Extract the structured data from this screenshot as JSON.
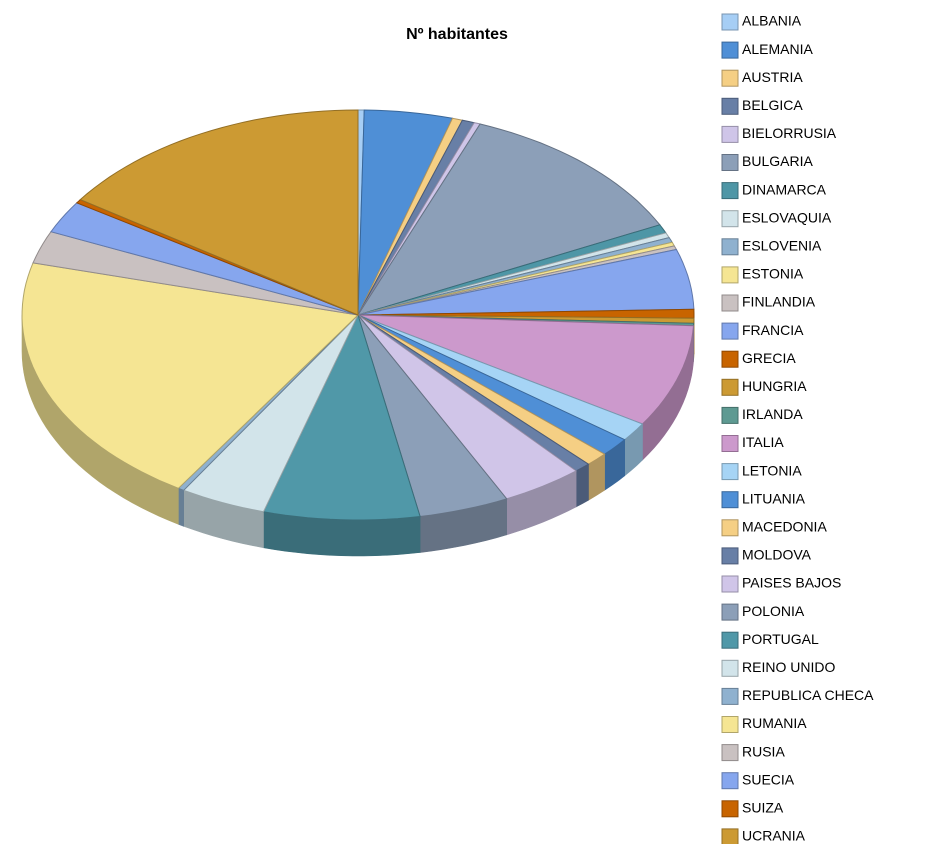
{
  "chart_data": {
    "type": "pie3d",
    "title": "Nº habitantes",
    "categories": [
      "ALBANIA",
      "ALEMANIA",
      "AUSTRIA",
      "BELGICA",
      "BIELORRUSIA",
      "BULGARIA",
      "DINAMARCA",
      "ESLOVAQUIA",
      "ESLOVENIA",
      "ESTONIA",
      "FINLANDIA",
      "FRANCIA",
      "GRECIA",
      "HUNGRIA",
      "IRLANDA",
      "ITALIA",
      "LETONIA",
      "LITUANIA",
      "MACEDONIA",
      "MOLDOVA",
      "PAISES BAJOS",
      "POLONIA",
      "PORTUGAL",
      "REINO UNIDO",
      "REPUBLICA CHECA",
      "RUMANIA",
      "RUSIA",
      "SUECIA",
      "SUIZA",
      "UCRANIA"
    ],
    "values": [
      0.3,
      4.3,
      0.5,
      0.6,
      0.3,
      12.0,
      0.7,
      0.4,
      0.4,
      0.3,
      0.3,
      4.8,
      0.7,
      0.4,
      0.2,
      8.2,
      1.5,
      1.5,
      1.1,
      0.8,
      4.0,
      4.4,
      7.6,
      4.2,
      0.3,
      20.4,
      2.6,
      2.6,
      0.3,
      15.7
    ],
    "colors": [
      "#a6cef5",
      "#4f8fd6",
      "#f5cf84",
      "#687fa6",
      "#cfc5e8",
      "#8c9fb8",
      "#4e96a6",
      "#d2e4ea",
      "#8fb1cf",
      "#f5e593",
      "#c9c1c1",
      "#86a6ee",
      "#c86400",
      "#cc9a33",
      "#5e9a92",
      "#cc99cc",
      "#a6d4f5",
      "#4f8fd6",
      "#f5cf84",
      "#687fa6",
      "#d0c5e8",
      "#8c9fb8",
      "#5098a8",
      "#d2e4ea",
      "#8fb1cf",
      "#f5e593",
      "#c9c1c1",
      "#86a6ee",
      "#c86400",
      "#cc9a33"
    ],
    "legend": "right"
  }
}
